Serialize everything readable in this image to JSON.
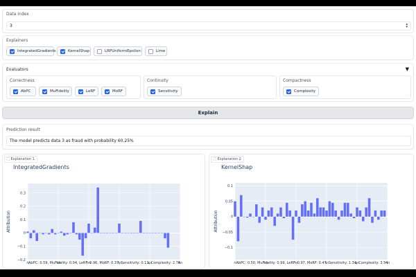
{
  "data_index": {
    "label": "Data index",
    "value": "3"
  },
  "explainers": {
    "label": "Explainers",
    "items": [
      {
        "label": "IntegratedGradients",
        "checked": true
      },
      {
        "label": "KernelShap",
        "checked": true
      },
      {
        "label": "LRPUniformEpsilon",
        "checked": false
      },
      {
        "label": "Lime",
        "checked": false
      }
    ]
  },
  "evaluators": {
    "label": "Evaluators",
    "groups": [
      {
        "label": "Correctness",
        "items": [
          {
            "label": "AbPC",
            "checked": true
          },
          {
            "label": "MuFidelity",
            "checked": true
          },
          {
            "label": "LeRF",
            "checked": true
          },
          {
            "label": "MoRF",
            "checked": true
          }
        ]
      },
      {
        "label": "Continuity",
        "items": [
          {
            "label": "Sensitivity",
            "checked": true
          }
        ]
      },
      {
        "label": "Compactness",
        "items": [
          {
            "label": "Complexity",
            "checked": true
          }
        ]
      }
    ]
  },
  "explain_button": "Explain",
  "prediction": {
    "label": "Prediction result",
    "text": "The model predicts data 3 as fraud with probability 60.25%"
  },
  "colors": {
    "bar": "#636efa",
    "plot_bg": "#e5ecf6",
    "accent": "#2563eb"
  },
  "explanations": [
    {
      "tag": "Explanation 1",
      "metrics": "AbPC: 0.59, MuFidelity: 0.04, LeRF: 0.96, MoRF: 0.37, Sensitivity: 0.13, Complexity: 2.78",
      "chart_data": {
        "type": "bar",
        "title": "IntegratedGradients",
        "xlabel": "Index",
        "ylabel": "Attribution",
        "xlim": [
          0,
          50
        ],
        "ylim": [
          -0.2,
          0.37
        ],
        "xticks": [
          "0",
          "10",
          "20",
          "30",
          "40",
          "50"
        ],
        "yticks": [
          "0.3",
          "0.2",
          "0.1",
          "0",
          "−0.1",
          "−0.2"
        ],
        "x": [
          0,
          1,
          2,
          3,
          4,
          5,
          6,
          7,
          8,
          9,
          10,
          11,
          12,
          13,
          14,
          15,
          16,
          17,
          18,
          19,
          20,
          21,
          22,
          23,
          24,
          25,
          26,
          27,
          28,
          29,
          30,
          31,
          32,
          33,
          34,
          35,
          36,
          37,
          38,
          39,
          40,
          41,
          42,
          43,
          44,
          45,
          46
        ],
        "values": [
          0.01,
          -0.04,
          0.02,
          -0.06,
          0,
          -0.01,
          0,
          -0.01,
          0.03,
          -0.01,
          0,
          0.01,
          -0.02,
          -0.01,
          0,
          0.08,
          -0.01,
          -0.05,
          -0.17,
          -0.04,
          0.07,
          0,
          0.04,
          0.34,
          0,
          0,
          0,
          0,
          0,
          0,
          0.07,
          0,
          0,
          0,
          0,
          0,
          0,
          0.09,
          0,
          0,
          0,
          0,
          0,
          0,
          0,
          -0.04,
          -0.11
        ]
      }
    },
    {
      "tag": "Explanation 2",
      "metrics": "AbPC: 0.50, MuFidelity: 0.99, LeRF: 0.97, MoRF: 0.47, Sensitivity: 1.34, Complexity: 3.54",
      "chart_data": {
        "type": "bar",
        "title": "KernelShap",
        "xlabel": "Index",
        "ylabel": "Attribution",
        "xlim": [
          0,
          50
        ],
        "ylim": [
          -0.14,
          0.11
        ],
        "xticks": [
          "0",
          "10",
          "20",
          "30",
          "40",
          "50"
        ],
        "yticks": [
          "0.1",
          "0.05",
          "0",
          "−0.05",
          "−0.1"
        ],
        "x": [
          0,
          1,
          2,
          3,
          4,
          5,
          6,
          7,
          8,
          9,
          10,
          11,
          12,
          13,
          14,
          15,
          16,
          17,
          18,
          19,
          20,
          21,
          22,
          23,
          24,
          25,
          26,
          27,
          28,
          29,
          30,
          31,
          32,
          33,
          34,
          35,
          36,
          37,
          38,
          39,
          40,
          41,
          42,
          43,
          44,
          45,
          46,
          47,
          48,
          49
        ],
        "values": [
          0.05,
          -0.08,
          0.07,
          0,
          -0.003,
          0.01,
          0,
          0.04,
          -0.02,
          0.03,
          -0.01,
          0.02,
          0.03,
          -0.03,
          0.01,
          0.03,
          -0.005,
          0.045,
          0.02,
          -0.075,
          0.02,
          -0.02,
          0.04,
          0.05,
          0.02,
          0.045,
          0.01,
          0.06,
          0.03,
          0.03,
          0.02,
          0.05,
          0.045,
          0.02,
          -0.01,
          0.02,
          0.045,
          0.045,
          0.01,
          -0.005,
          0.03,
          0.02,
          -0.015,
          0.03,
          0.06,
          -0.02,
          0.02,
          -0.01,
          0.02,
          0.02
        ]
      }
    }
  ]
}
